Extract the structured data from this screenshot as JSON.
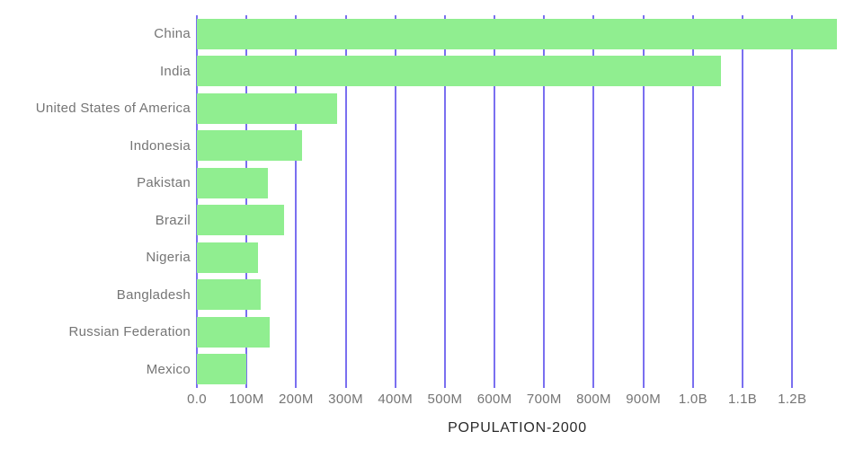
{
  "colors": {
    "bar": "#90ee90",
    "grid": "#7a6ff0",
    "axis_text": "#757575",
    "title_text": "#2b2b2b",
    "background": "#ffffff"
  },
  "chart_data": {
    "type": "bar",
    "orientation": "horizontal",
    "title": "POPULATION-2000",
    "xlabel": "POPULATION-2000",
    "ylabel": "",
    "categories": [
      "China",
      "India",
      "United States of America",
      "Indonesia",
      "Pakistan",
      "Brazil",
      "Nigeria",
      "Bangladesh",
      "Russian Federation",
      "Mexico"
    ],
    "values_millions": [
      1290,
      1057,
      282,
      212,
      143,
      175,
      123,
      128,
      146,
      99
    ],
    "x_tick_labels": [
      "0.0",
      "100M",
      "200M",
      "300M",
      "400M",
      "500M",
      "600M",
      "700M",
      "800M",
      "900M",
      "1.0B",
      "1.1B",
      "1.2B"
    ],
    "x_tick_values_millions": [
      0,
      100,
      200,
      300,
      400,
      500,
      600,
      700,
      800,
      900,
      1000,
      1100,
      1200
    ],
    "xlim_millions": [
      0,
      1292
    ],
    "grid": true,
    "legend": false
  }
}
